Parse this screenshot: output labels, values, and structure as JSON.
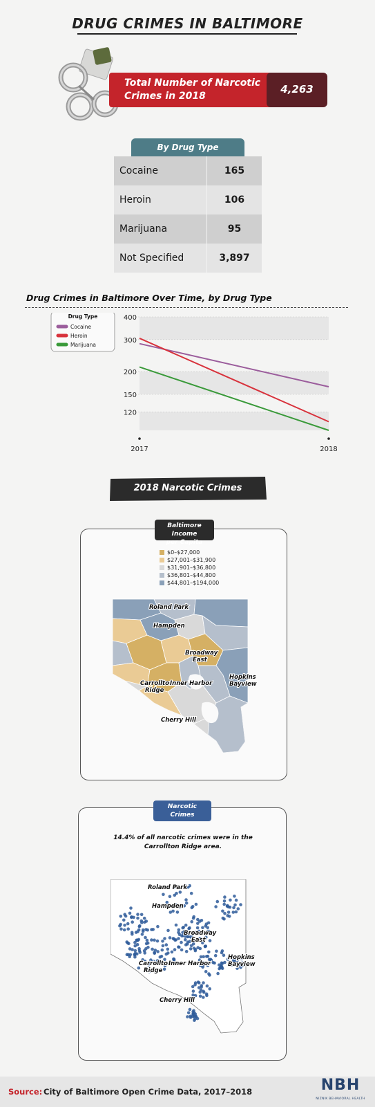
{
  "header": {
    "title": "DRUG CRIMES IN BALTIMORE"
  },
  "total": {
    "label_line1": "Total Number of Narcotic",
    "label_line2": "Crimes in 2018",
    "value": "4,263"
  },
  "drug_table": {
    "header": "By Drug Type",
    "rows": [
      {
        "type": "Cocaine",
        "count": "165"
      },
      {
        "type": "Heroin",
        "count": "106"
      },
      {
        "type": "Marijuana",
        "count": "95"
      },
      {
        "type": "Not Specified",
        "count": "3,897"
      }
    ]
  },
  "chart_data": {
    "type": "line",
    "title": "Drug Crimes in Baltimore Over Time, by Drug Type",
    "x": [
      "2017",
      "2018"
    ],
    "series": [
      {
        "name": "Cocaine",
        "values": [
          285,
          165
        ],
        "color": "#9b5d9c"
      },
      {
        "name": "Heroin",
        "values": [
          305,
          106
        ],
        "color": "#d8323c"
      },
      {
        "name": "Marijuana",
        "values": [
          212,
          95
        ],
        "color": "#3a9a3a"
      }
    ],
    "yscale": "log",
    "ylim": [
      95,
      400
    ],
    "yticks": [
      120,
      150,
      200,
      300,
      400
    ],
    "legend_title": "Drug Type",
    "legend_position": "top-left"
  },
  "section": {
    "title": "2018 Narcotic Crimes"
  },
  "income_map": {
    "tab_line1": "Baltimore Income",
    "tab_line2": "per Capita",
    "legend": [
      {
        "label": "$0–$27,000",
        "color": "#d5b064"
      },
      {
        "label": "$27,001–$31,900",
        "color": "#eacb95"
      },
      {
        "label": "$31,901–$36,800",
        "color": "#d9d9d9"
      },
      {
        "label": "$36,801–$44,800",
        "color": "#b5bfcc"
      },
      {
        "label": "$44,801–$194,000",
        "color": "#8aa0b8"
      }
    ]
  },
  "crime_map": {
    "tab_line1": "Narcotic",
    "tab_line2": "Crimes",
    "caption_line1": "14.4% of all narcotic crimes were in the",
    "caption_line2": "Carrollton Ridge area.",
    "point_color": "#2f5c9a"
  },
  "map_labels": {
    "roland_park": "Roland Park",
    "hampden": "Hampden",
    "broadway_1": "Broadway",
    "broadway_2": "East",
    "carrollton_1": "Carrollton",
    "carrollton_2": "Ridge",
    "inner_harbor": "Inner Harbor",
    "hopkins_1": "Hopkins",
    "hopkins_2": "Bayview",
    "cherry_hill": "Cherry Hill"
  },
  "footer": {
    "source_label": "Source:",
    "source_text": "City of Baltimore Open Crime Data, 2017–2018",
    "logo": "NBH",
    "logo_sub": "NIZNIK BEHAVIORAL HEALTH"
  }
}
